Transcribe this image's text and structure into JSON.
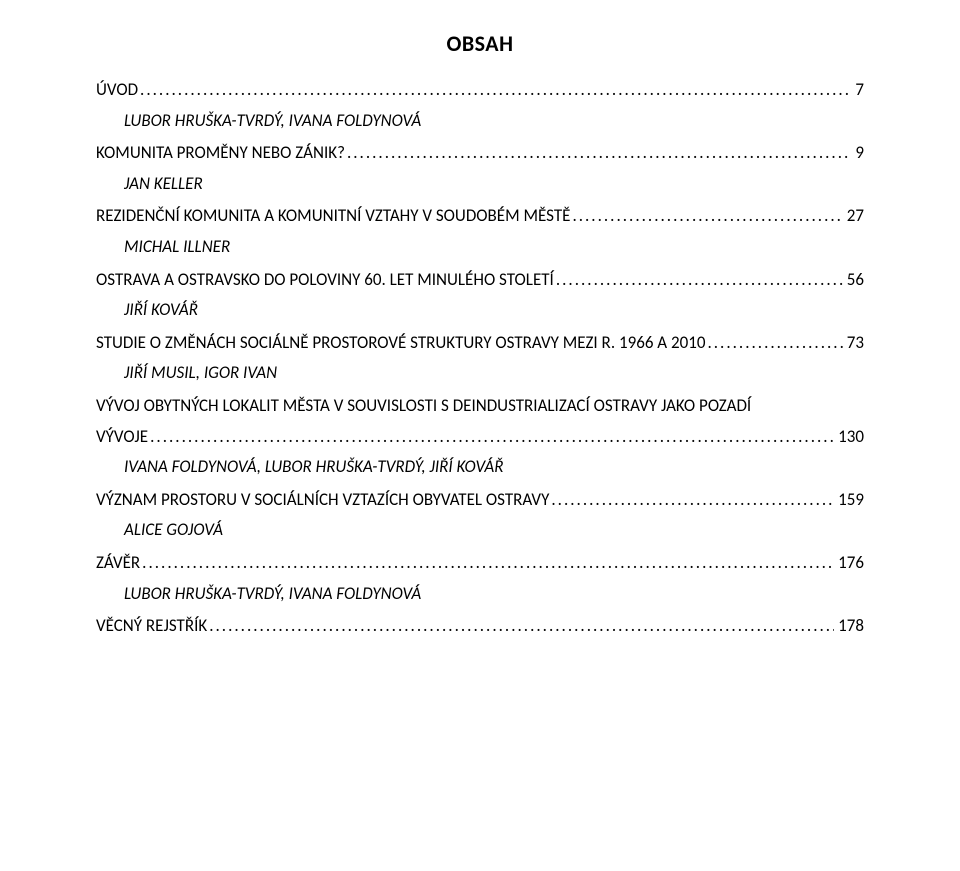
{
  "title": "OBSAH",
  "font": {
    "family": "Calibri",
    "title_size_pt": 16,
    "body_size_pt": 12
  },
  "colors": {
    "text": "#000000",
    "background": "#ffffff"
  },
  "entries": [
    {
      "label": "ÚVOD",
      "page": "7",
      "author": "LUBOR HRUŠKA-TVRDÝ, IVANA FOLDYNOVÁ"
    },
    {
      "label": "KOMUNITA PROMĚNY NEBO ZÁNIK?",
      "page": "9",
      "author": "JAN KELLER"
    },
    {
      "label": "REZIDENČNÍ KOMUNITA A KOMUNITNÍ VZTAHY V SOUDOBÉM MĚSTĚ",
      "page": "27",
      "author": "MICHAL ILLNER"
    },
    {
      "label": "OSTRAVA A OSTRAVSKO DO POLOVINY 60. LET MINULÉHO STOLETÍ",
      "page": "56",
      "author": "JIŘÍ KOVÁŘ"
    },
    {
      "label": "STUDIE O ZMĚNÁCH SOCIÁLNĚ PROSTOROVÉ STRUKTURY OSTRAVY MEZI R. 1966 A 2010",
      "page": "73",
      "author": "JIŘÍ MUSIL, IGOR IVAN"
    },
    {
      "label_lines": [
        "VÝVOJ OBYTNÝCH LOKALIT MĚSTA V SOUVISLOSTI S DEINDUSTRIALIZACÍ OSTRAVY JAKO POZADÍ",
        "VÝVOJE"
      ],
      "page": "130",
      "author": "IVANA FOLDYNOVÁ, LUBOR HRUŠKA-TVRDÝ, JIŘÍ KOVÁŘ"
    },
    {
      "label": "VÝZNAM PROSTORU V SOCIÁLNÍCH VZTAZÍCH OBYVATEL OSTRAVY",
      "page": "159",
      "author": "ALICE GOJOVÁ"
    },
    {
      "label": "ZÁVĚR",
      "page": "176",
      "author": "LUBOR HRUŠKA-TVRDÝ, IVANA FOLDYNOVÁ"
    },
    {
      "label": "VĚCNÝ REJSTŘÍK",
      "page": "178"
    }
  ]
}
